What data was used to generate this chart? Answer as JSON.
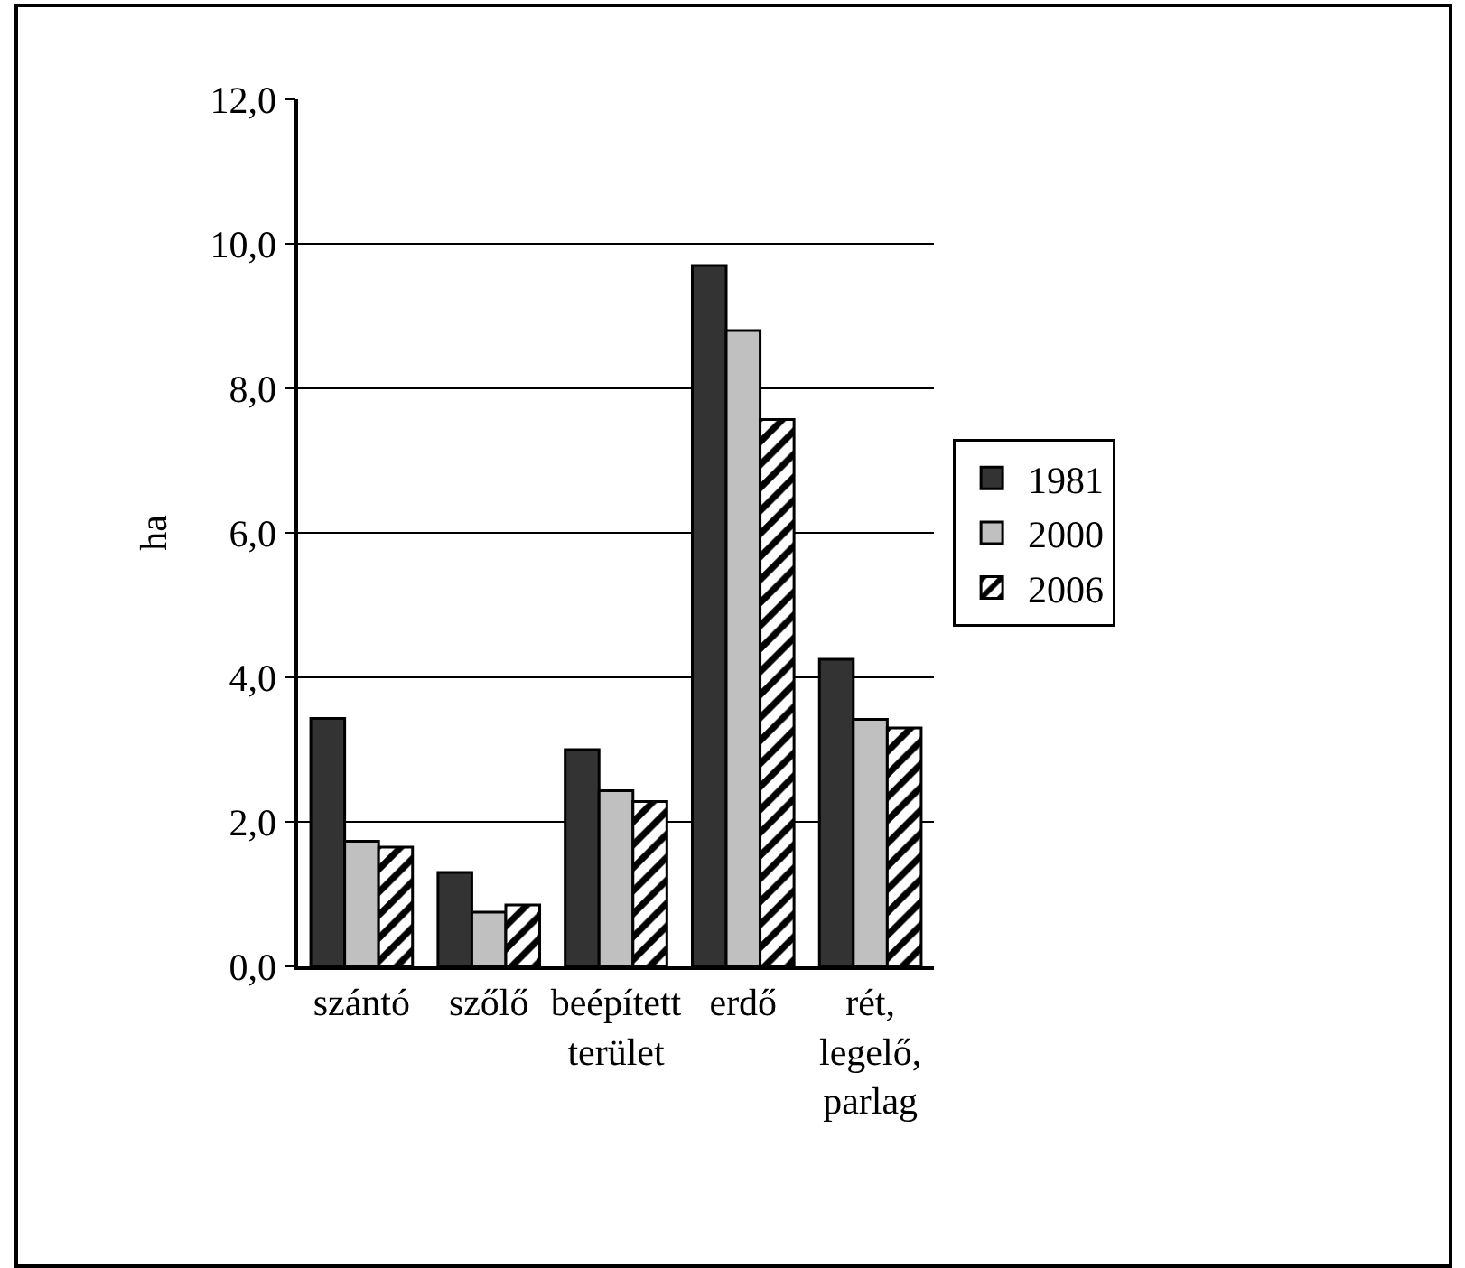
{
  "chart_data": {
    "type": "bar",
    "ylabel": "ha",
    "categories": [
      "szántó",
      "szőlő",
      "beépített terület",
      "erdő",
      "rét, legelő, parlag"
    ],
    "series": [
      {
        "name": "1981",
        "color": "#333333",
        "values": [
          3.43,
          1.3,
          3.0,
          9.7,
          4.25
        ]
      },
      {
        "name": "2000",
        "color": "#c0c0c0",
        "values": [
          1.73,
          0.75,
          2.43,
          8.8,
          3.42
        ]
      },
      {
        "name": "2006",
        "color": "#000000",
        "values": [
          1.65,
          0.85,
          2.28,
          7.57,
          3.3
        ]
      }
    ],
    "ylim": [
      0,
      12
    ],
    "yticks": [
      {
        "value": 0,
        "label": "0,0"
      },
      {
        "value": 2,
        "label": "2,0"
      },
      {
        "value": 4,
        "label": "4,0"
      },
      {
        "value": 6,
        "label": "6,0"
      },
      {
        "value": 8,
        "label": "8,0"
      },
      {
        "value": 10,
        "label": "10,0"
      },
      {
        "value": 12,
        "label": "12,0"
      }
    ],
    "grid": "y",
    "legend": "right"
  }
}
